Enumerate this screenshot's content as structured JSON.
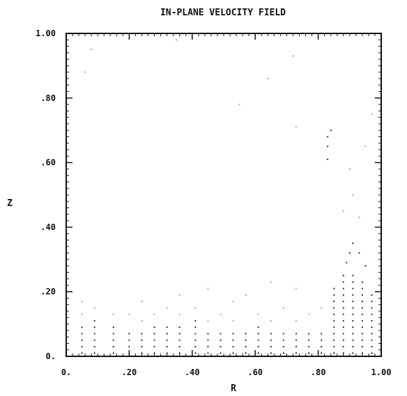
{
  "chart_data": {
    "type": "scatter",
    "title": "IN-PLANE VELOCITY FIELD",
    "xlabel": "R",
    "ylabel": "Z",
    "xlim": [
      0,
      1
    ],
    "ylim": [
      0,
      1
    ],
    "x_ticks": [
      {
        "value": 0,
        "label": "0."
      },
      {
        "value": 0.2,
        "label": ".20"
      },
      {
        "value": 0.4,
        "label": ".40"
      },
      {
        "value": 0.6,
        "label": ".60"
      },
      {
        "value": 0.8,
        "label": ".80"
      },
      {
        "value": 1.0,
        "label": "1.00"
      }
    ],
    "y_ticks": [
      {
        "value": 0,
        "label": "0."
      },
      {
        "value": 0.2,
        "label": ".20"
      },
      {
        "value": 0.4,
        "label": ".40"
      },
      {
        "value": 0.6,
        "label": ".60"
      },
      {
        "value": 0.8,
        "label": ".80"
      },
      {
        "value": 1.0,
        "label": "1.00"
      }
    ],
    "grid": false,
    "series": [
      {
        "color": "#222222",
        "points": [
          [
            0.05,
            0.01
          ],
          [
            0.05,
            0.03
          ],
          [
            0.05,
            0.05
          ],
          [
            0.05,
            0.07
          ],
          [
            0.05,
            0.09
          ],
          [
            0.09,
            0.01
          ],
          [
            0.09,
            0.03
          ],
          [
            0.09,
            0.05
          ],
          [
            0.09,
            0.07
          ],
          [
            0.09,
            0.09
          ],
          [
            0.09,
            0.11
          ],
          [
            0.15,
            0.01
          ],
          [
            0.15,
            0.03
          ],
          [
            0.15,
            0.05
          ],
          [
            0.15,
            0.07
          ],
          [
            0.15,
            0.09
          ],
          [
            0.2,
            0.01
          ],
          [
            0.2,
            0.03
          ],
          [
            0.2,
            0.05
          ],
          [
            0.2,
            0.07
          ],
          [
            0.24,
            0.01
          ],
          [
            0.24,
            0.03
          ],
          [
            0.24,
            0.05
          ],
          [
            0.24,
            0.07
          ],
          [
            0.28,
            0.01
          ],
          [
            0.28,
            0.03
          ],
          [
            0.28,
            0.05
          ],
          [
            0.28,
            0.07
          ],
          [
            0.28,
            0.09
          ],
          [
            0.32,
            0.01
          ],
          [
            0.32,
            0.03
          ],
          [
            0.32,
            0.05
          ],
          [
            0.32,
            0.07
          ],
          [
            0.32,
            0.09
          ],
          [
            0.36,
            0.01
          ],
          [
            0.36,
            0.03
          ],
          [
            0.36,
            0.05
          ],
          [
            0.36,
            0.07
          ],
          [
            0.36,
            0.09
          ],
          [
            0.41,
            0.01
          ],
          [
            0.41,
            0.03
          ],
          [
            0.41,
            0.05
          ],
          [
            0.41,
            0.07
          ],
          [
            0.41,
            0.09
          ],
          [
            0.41,
            0.11
          ],
          [
            0.45,
            0.01
          ],
          [
            0.45,
            0.03
          ],
          [
            0.45,
            0.05
          ],
          [
            0.45,
            0.07
          ],
          [
            0.49,
            0.01
          ],
          [
            0.49,
            0.03
          ],
          [
            0.49,
            0.05
          ],
          [
            0.49,
            0.07
          ],
          [
            0.53,
            0.01
          ],
          [
            0.53,
            0.03
          ],
          [
            0.53,
            0.05
          ],
          [
            0.53,
            0.07
          ],
          [
            0.57,
            0.01
          ],
          [
            0.57,
            0.03
          ],
          [
            0.57,
            0.05
          ],
          [
            0.57,
            0.07
          ],
          [
            0.61,
            0.01
          ],
          [
            0.61,
            0.03
          ],
          [
            0.61,
            0.05
          ],
          [
            0.61,
            0.07
          ],
          [
            0.61,
            0.09
          ],
          [
            0.65,
            0.01
          ],
          [
            0.65,
            0.03
          ],
          [
            0.65,
            0.05
          ],
          [
            0.65,
            0.07
          ],
          [
            0.69,
            0.01
          ],
          [
            0.69,
            0.03
          ],
          [
            0.69,
            0.05
          ],
          [
            0.69,
            0.07
          ],
          [
            0.73,
            0.01
          ],
          [
            0.73,
            0.03
          ],
          [
            0.73,
            0.05
          ],
          [
            0.73,
            0.07
          ],
          [
            0.77,
            0.01
          ],
          [
            0.77,
            0.03
          ],
          [
            0.77,
            0.05
          ],
          [
            0.77,
            0.07
          ],
          [
            0.81,
            0.01
          ],
          [
            0.81,
            0.03
          ],
          [
            0.81,
            0.05
          ],
          [
            0.81,
            0.07
          ],
          [
            0.85,
            0.01
          ],
          [
            0.85,
            0.03
          ],
          [
            0.85,
            0.05
          ],
          [
            0.85,
            0.07
          ],
          [
            0.85,
            0.09
          ],
          [
            0.85,
            0.11
          ],
          [
            0.85,
            0.13
          ],
          [
            0.85,
            0.15
          ],
          [
            0.85,
            0.17
          ],
          [
            0.85,
            0.19
          ],
          [
            0.85,
            0.21
          ],
          [
            0.88,
            0.01
          ],
          [
            0.88,
            0.03
          ],
          [
            0.88,
            0.05
          ],
          [
            0.88,
            0.07
          ],
          [
            0.88,
            0.09
          ],
          [
            0.88,
            0.11
          ],
          [
            0.88,
            0.13
          ],
          [
            0.88,
            0.15
          ],
          [
            0.88,
            0.17
          ],
          [
            0.88,
            0.19
          ],
          [
            0.88,
            0.21
          ],
          [
            0.88,
            0.23
          ],
          [
            0.88,
            0.25
          ],
          [
            0.91,
            0.01
          ],
          [
            0.91,
            0.03
          ],
          [
            0.91,
            0.05
          ],
          [
            0.91,
            0.07
          ],
          [
            0.91,
            0.09
          ],
          [
            0.91,
            0.11
          ],
          [
            0.91,
            0.13
          ],
          [
            0.91,
            0.15
          ],
          [
            0.91,
            0.17
          ],
          [
            0.91,
            0.19
          ],
          [
            0.91,
            0.21
          ],
          [
            0.91,
            0.23
          ],
          [
            0.91,
            0.25
          ],
          [
            0.94,
            0.01
          ],
          [
            0.94,
            0.03
          ],
          [
            0.94,
            0.05
          ],
          [
            0.94,
            0.07
          ],
          [
            0.94,
            0.09
          ],
          [
            0.94,
            0.11
          ],
          [
            0.94,
            0.13
          ],
          [
            0.94,
            0.15
          ],
          [
            0.94,
            0.17
          ],
          [
            0.94,
            0.19
          ],
          [
            0.94,
            0.21
          ],
          [
            0.94,
            0.23
          ],
          [
            0.97,
            0.01
          ],
          [
            0.97,
            0.03
          ],
          [
            0.97,
            0.05
          ],
          [
            0.97,
            0.07
          ],
          [
            0.97,
            0.09
          ],
          [
            0.97,
            0.11
          ],
          [
            0.97,
            0.13
          ],
          [
            0.97,
            0.15
          ],
          [
            0.97,
            0.17
          ],
          [
            0.97,
            0.19
          ],
          [
            0.89,
            0.29
          ],
          [
            0.9,
            0.32
          ],
          [
            0.91,
            0.35
          ],
          [
            0.93,
            0.32
          ],
          [
            0.95,
            0.28
          ],
          [
            0.83,
            0.61
          ],
          [
            0.83,
            0.65
          ],
          [
            0.83,
            0.68
          ],
          [
            0.84,
            0.7
          ]
        ]
      },
      {
        "color": "#bbbbbb",
        "points": [
          [
            0.05,
            0.13
          ],
          [
            0.05,
            0.17
          ],
          [
            0.15,
            0.13
          ],
          [
            0.24,
            0.11
          ],
          [
            0.28,
            0.13
          ],
          [
            0.32,
            0.15
          ],
          [
            0.36,
            0.13
          ],
          [
            0.45,
            0.11
          ],
          [
            0.49,
            0.13
          ],
          [
            0.53,
            0.11
          ],
          [
            0.61,
            0.13
          ],
          [
            0.65,
            0.11
          ],
          [
            0.73,
            0.11
          ],
          [
            0.77,
            0.13
          ],
          [
            0.81,
            0.15
          ],
          [
            0.73,
            0.21
          ],
          [
            0.65,
            0.23
          ],
          [
            0.57,
            0.19
          ],
          [
            0.45,
            0.21
          ],
          [
            0.36,
            0.19
          ],
          [
            0.24,
            0.17
          ],
          [
            0.41,
            0.15
          ],
          [
            0.69,
            0.15
          ],
          [
            0.09,
            0.15
          ],
          [
            0.2,
            0.13
          ],
          [
            0.53,
            0.17
          ],
          [
            0.88,
            0.45
          ],
          [
            0.91,
            0.5
          ],
          [
            0.93,
            0.43
          ],
          [
            0.9,
            0.58
          ],
          [
            0.06,
            0.88
          ],
          [
            0.08,
            0.95
          ],
          [
            0.55,
            0.78
          ],
          [
            0.64,
            0.86
          ],
          [
            0.72,
            0.93
          ],
          [
            0.35,
            0.98
          ],
          [
            0.95,
            0.65
          ],
          [
            0.97,
            0.75
          ],
          [
            0.73,
            0.71
          ]
        ]
      }
    ]
  }
}
